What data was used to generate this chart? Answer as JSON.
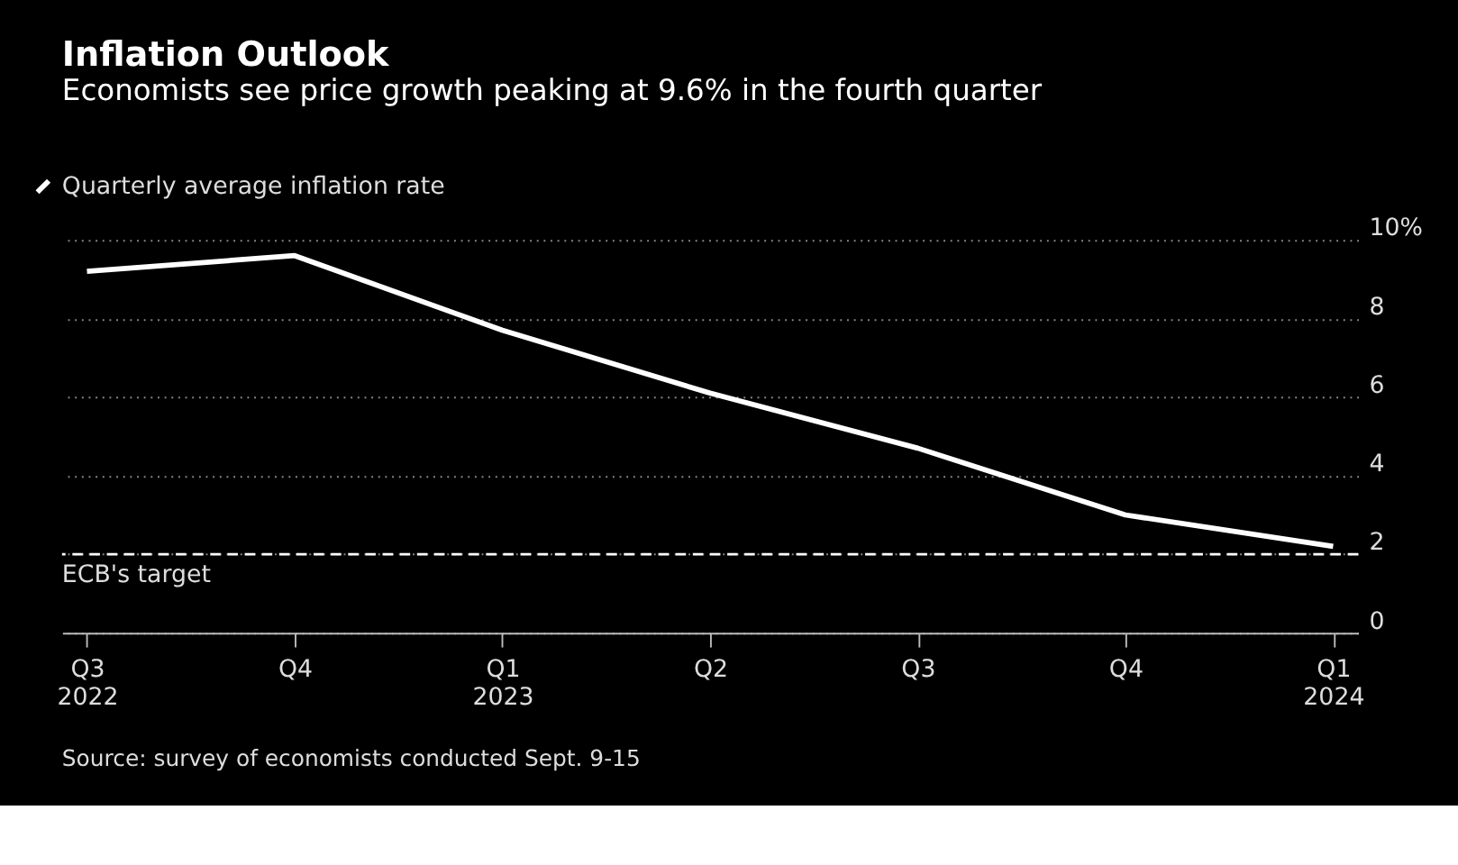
{
  "chart_data": {
    "type": "line",
    "title": "Inflation Outlook",
    "subtitle": "Economists see price growth peaking at 9.6% in the fourth quarter",
    "categories": [
      "Q3 2022",
      "Q4",
      "Q1 2023",
      "Q2",
      "Q3",
      "Q4",
      "Q1 2024"
    ],
    "series": [
      {
        "name": "Quarterly average inflation rate",
        "color": "#ffffff",
        "values": [
          9.2,
          9.6,
          7.7,
          6.1,
          4.7,
          3.0,
          2.2
        ]
      }
    ],
    "ylim": [
      0,
      10
    ],
    "yticks": [
      0,
      2,
      4,
      6,
      8,
      {
        "value": 10,
        "label": "10%"
      }
    ],
    "grid": "y",
    "legend": "top left",
    "marker": "none",
    "line_style": "solid",
    "ref_lines": [
      {
        "axis": "y",
        "value": 2,
        "label": "ECB's target",
        "color": "#ffffff",
        "line_style": "dashed"
      }
    ],
    "annotations": [
      "Source: survey of economists conducted Sept. 9-15"
    ]
  }
}
